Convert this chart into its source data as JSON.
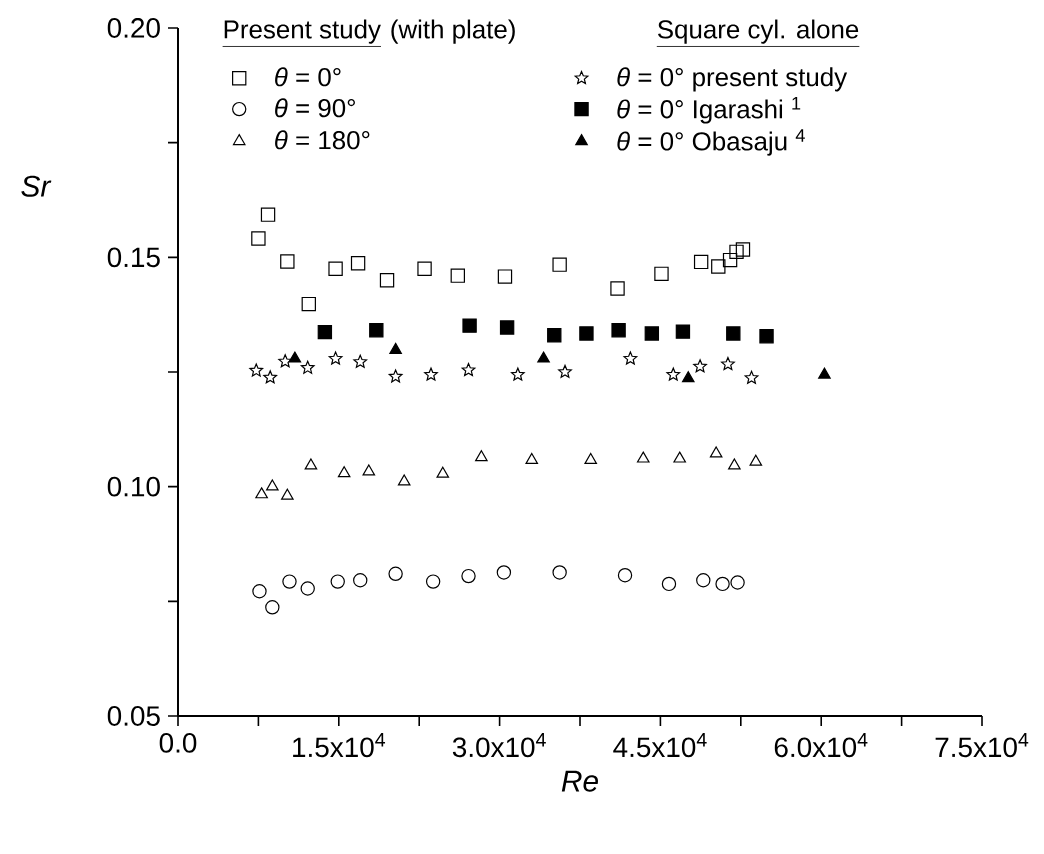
{
  "chart_data": {
    "type": "scatter",
    "xlabel": "Re",
    "ylabel": "Sr",
    "annotations": [
      "Present study",
      "(with plate)",
      "Square cyl. alone"
    ],
    "xlim": [
      0,
      75000
    ],
    "ylim": [
      0.05,
      0.2
    ],
    "xticks": [
      {
        "value": 0,
        "label": "0.0"
      },
      {
        "value": 7500,
        "label": null
      },
      {
        "value": 15000,
        "label": "1.5x10$^{4}$"
      },
      {
        "value": 22500,
        "label": null
      },
      {
        "value": 30000,
        "label": "3.0x10$^{4}$"
      },
      {
        "value": 37500,
        "label": null
      },
      {
        "value": 45000,
        "label": "4.5x10$^{4}$"
      },
      {
        "value": 52500,
        "label": null
      },
      {
        "value": 60000,
        "label": "6.0x10$^{4}$"
      },
      {
        "value": 67500,
        "label": null
      },
      {
        "value": 75000,
        "label": "7.5x10$^{4}$"
      }
    ],
    "yticks": [
      0.05,
      {
        "value": 0.075,
        "label": null
      },
      {
        "value": 0.1,
        "label": "0.10"
      },
      {
        "value": 0.125,
        "label": null
      },
      0.15,
      {
        "value": 0.175,
        "label": null
      },
      {
        "value": 0.2,
        "label": "0.20"
      }
    ],
    "legend": "top",
    "grid": false,
    "series": [
      {
        "name": "*θ* = 0°",
        "marker": "square",
        "color": "#000000",
        "x": [
          7500,
          8400,
          10200,
          12200,
          14700,
          16800,
          19500,
          23000,
          26100,
          30500,
          35600,
          41000,
          45100,
          48800,
          50400,
          51500,
          52100,
          52700
        ],
        "values": [
          0.1541,
          0.1593,
          0.1491,
          0.1398,
          0.1475,
          0.1487,
          0.145,
          0.1475,
          0.146,
          0.1458,
          0.1484,
          0.1432,
          0.1464,
          0.149,
          0.148,
          0.1494,
          0.1512,
          0.1517
        ]
      },
      {
        "name": "*θ* = 90°",
        "marker": "circle",
        "color": "#000000",
        "x": [
          7600,
          8800,
          10400,
          12100,
          14900,
          17000,
          20300,
          23800,
          27100,
          30400,
          35600,
          41700,
          45800,
          49000,
          50800,
          52200
        ],
        "values": [
          0.0772,
          0.0737,
          0.0793,
          0.0778,
          0.0793,
          0.0796,
          0.081,
          0.0793,
          0.0805,
          0.0813,
          0.0813,
          0.0807,
          0.0788,
          0.0796,
          0.0788,
          0.0791
        ]
      },
      {
        "name": "*θ* = 180°",
        "marker": "triangle",
        "color": "#000000",
        "x": [
          7800,
          8800,
          10200,
          12400,
          15500,
          17800,
          21100,
          24700,
          28300,
          33000,
          38500,
          43400,
          46800,
          50200,
          51900,
          53900
        ],
        "values": [
          0.0983,
          0.1,
          0.098,
          0.1046,
          0.1029,
          0.1033,
          0.1011,
          0.1028,
          0.1064,
          0.1058,
          0.1058,
          0.1061,
          0.1061,
          0.1072,
          0.1046,
          0.1054
        ]
      },
      {
        "name": "*θ* = 0°  present study",
        "marker": "star",
        "color": "#000000",
        "x": [
          7300,
          8600,
          10000,
          12100,
          14700,
          17000,
          20300,
          23600,
          27100,
          31700,
          36100,
          42200,
          46200,
          48700,
          51300,
          53500
        ],
        "values": [
          0.1253,
          0.1238,
          0.1273,
          0.1259,
          0.1279,
          0.1272,
          0.124,
          0.1244,
          0.1254,
          0.1244,
          0.125,
          0.1279,
          0.1244,
          0.1262,
          0.1267,
          0.1237
        ]
      },
      {
        "name": "*θ* = 0°  Igarashi $^{1}$",
        "marker": "square",
        "color": "#000000",
        "x": [
          13700,
          18500,
          27200,
          30700,
          35100,
          38100,
          41100,
          44200,
          47100,
          51800,
          54900
        ],
        "values": [
          0.1337,
          0.1341,
          0.1351,
          0.1347,
          0.133,
          0.1334,
          0.1341,
          0.1334,
          0.1338,
          0.1334,
          0.1328
        ]
      },
      {
        "name": "*θ* = 0°  Obasaju $^{4}$",
        "marker": "triangle",
        "color": "#000000",
        "x": [
          10900,
          20300,
          34100,
          47600,
          60300
        ],
        "values": [
          0.1279,
          0.1298,
          0.1279,
          0.1236,
          0.1244
        ]
      }
    ]
  }
}
